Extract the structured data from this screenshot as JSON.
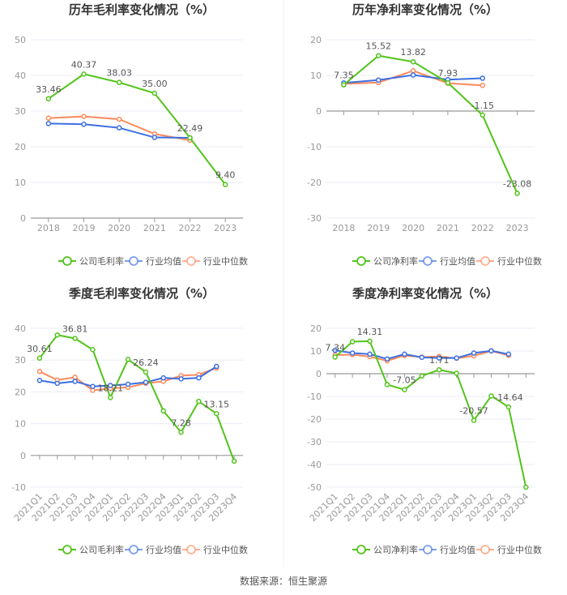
{
  "legend_labels": {
    "avg": "行业均值",
    "median": "行业中位数"
  },
  "colors": {
    "company": "#52c41a",
    "avg": "#3c6fe0",
    "median": "#ff8a5c",
    "grid": "#e8ecf4",
    "axis": "#999999"
  },
  "footer": "数据来源：恒生聚源",
  "chart_data": [
    {
      "type": "line",
      "title": "历年毛利率变化情况（%）",
      "categories": [
        "2018",
        "2019",
        "2020",
        "2021",
        "2022",
        "2023"
      ],
      "ylim": [
        0,
        50
      ],
      "yticks": [
        0,
        10,
        20,
        30,
        40,
        50
      ],
      "series": [
        {
          "name": "公司毛利率",
          "values": [
            33.46,
            40.37,
            38.03,
            35.0,
            22.49,
            9.4
          ],
          "labels": [
            0,
            1,
            2,
            3,
            4,
            5
          ]
        },
        {
          "name": "行业均值",
          "values": [
            26.5,
            26.3,
            25.3,
            22.6,
            22.5,
            null
          ]
        },
        {
          "name": "行业中位数",
          "values": [
            28.0,
            28.5,
            27.7,
            23.6,
            21.8,
            null
          ]
        }
      ]
    },
    {
      "type": "line",
      "title": "历年净利率变化情况（%）",
      "categories": [
        "2018",
        "2019",
        "2020",
        "2021",
        "2022",
        "2023"
      ],
      "ylim": [
        -30,
        20
      ],
      "yticks": [
        -30,
        -20,
        -10,
        0,
        10,
        20
      ],
      "series": [
        {
          "name": "公司净利率",
          "values": [
            7.35,
            15.52,
            13.82,
            7.93,
            -1.15,
            -23.08
          ],
          "labels": [
            0,
            1,
            2,
            3,
            4,
            5
          ]
        },
        {
          "name": "行业均值",
          "values": [
            7.9,
            8.7,
            10.1,
            8.8,
            9.2,
            null
          ]
        },
        {
          "name": "行业中位数",
          "values": [
            7.6,
            8.0,
            11.3,
            7.8,
            7.2,
            null
          ]
        }
      ]
    },
    {
      "type": "line",
      "title": "季度毛利率变化情况（%）",
      "categories": [
        "2021Q1",
        "2021Q2",
        "2021Q3",
        "2021Q4",
        "2022Q1",
        "2022Q2",
        "2022Q3",
        "2022Q4",
        "2023Q1",
        "2023Q2",
        "2023Q3",
        "2023Q4"
      ],
      "ylim": [
        -10,
        40
      ],
      "yticks": [
        -10,
        0,
        10,
        20,
        30,
        40
      ],
      "series": [
        {
          "name": "公司毛利率",
          "values": [
            30.61,
            37.9,
            36.81,
            33.3,
            18.21,
            30.2,
            26.24,
            14.0,
            7.28,
            17.0,
            13.15,
            -1.8
          ],
          "labels": [
            0,
            2,
            4,
            6,
            8,
            10
          ]
        },
        {
          "name": "行业均值",
          "values": [
            23.6,
            22.7,
            23.3,
            21.7,
            22.0,
            22.4,
            23.0,
            24.4,
            24.1,
            24.4,
            28.0,
            null
          ]
        },
        {
          "name": "行业中位数",
          "values": [
            26.4,
            23.7,
            24.6,
            20.5,
            21.1,
            21.4,
            22.7,
            23.3,
            25.1,
            25.4,
            27.5,
            null
          ]
        }
      ]
    },
    {
      "type": "line",
      "title": "季度净利率变化情况（%）",
      "categories": [
        "2021Q1",
        "2021Q2",
        "2021Q3",
        "2021Q4",
        "2022Q1",
        "2022Q2",
        "2022Q3",
        "2022Q4",
        "2023Q1",
        "2023Q2",
        "2023Q3",
        "2023Q4"
      ],
      "ylim": [
        -50,
        20
      ],
      "yticks": [
        -50,
        -40,
        -30,
        -20,
        -10,
        0,
        10,
        20
      ],
      "series": [
        {
          "name": "公司净利率",
          "values": [
            7.34,
            14.1,
            14.31,
            -4.8,
            -7.05,
            -1.0,
            1.71,
            0.2,
            -20.57,
            -9.8,
            -14.64,
            -50.0
          ],
          "labels": [
            0,
            2,
            4,
            6,
            8,
            10
          ]
        },
        {
          "name": "行业均值",
          "values": [
            10.3,
            9.1,
            8.6,
            6.5,
            8.6,
            7.2,
            6.9,
            6.9,
            9.1,
            10.1,
            8.6,
            null
          ]
        },
        {
          "name": "行业中位数",
          "values": [
            8.2,
            8.4,
            7.5,
            5.7,
            8.0,
            7.3,
            7.6,
            6.8,
            7.9,
            10.0,
            8.1,
            null
          ]
        }
      ]
    }
  ]
}
